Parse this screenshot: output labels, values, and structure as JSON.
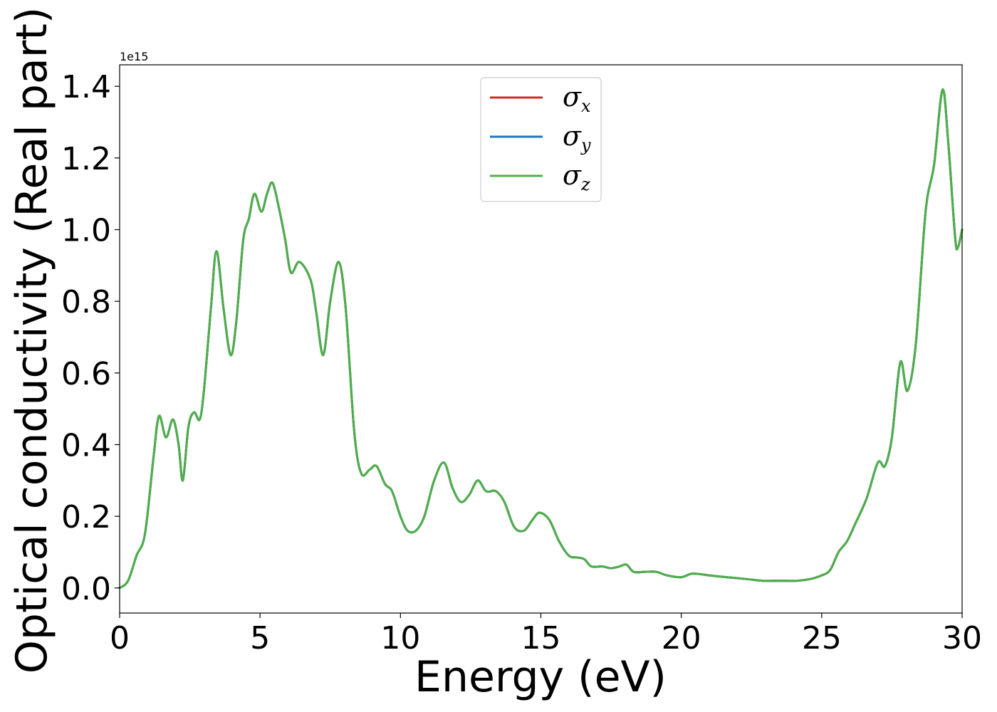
{
  "chart_data": {
    "type": "line",
    "xlabel": "Energy (eV)",
    "ylabel": "Optical conductivity (Real part)",
    "y_offset_label": "1e15",
    "xlim": [
      0,
      30
    ],
    "ylim": [
      -0.07,
      1.46
    ],
    "xticks": [
      0,
      5,
      10,
      15,
      20,
      25,
      30
    ],
    "xtick_labels": [
      "0",
      "5",
      "10",
      "15",
      "20",
      "25",
      "30"
    ],
    "yticks": [
      0.0,
      0.2,
      0.4,
      0.6,
      0.8,
      1.0,
      1.2,
      1.4
    ],
    "ytick_labels": [
      "0.0",
      "0.2",
      "0.4",
      "0.6",
      "0.8",
      "1.0",
      "1.2",
      "1.4"
    ],
    "grid": false,
    "legend_position": "top-center",
    "x": [
      0,
      0.3,
      0.6,
      0.9,
      1.2,
      1.4,
      1.65,
      1.9,
      2.1,
      2.25,
      2.45,
      2.65,
      2.85,
      3.0,
      3.25,
      3.45,
      3.7,
      3.95,
      4.15,
      4.4,
      4.6,
      4.8,
      5.05,
      5.25,
      5.45,
      5.7,
      5.9,
      6.1,
      6.4,
      6.8,
      7.0,
      7.25,
      7.5,
      7.8,
      8.05,
      8.35,
      8.6,
      8.9,
      9.15,
      9.45,
      9.7,
      10.0,
      10.25,
      10.55,
      10.85,
      11.2,
      11.55,
      11.85,
      12.15,
      12.45,
      12.75,
      13.05,
      13.4,
      13.7,
      14.05,
      14.4,
      14.7,
      14.95,
      15.3,
      15.65,
      16.0,
      16.3,
      16.55,
      16.8,
      17.2,
      17.5,
      17.8,
      18.05,
      18.3,
      18.7,
      19.1,
      19.5,
      20.0,
      20.4,
      21.0,
      21.6,
      22.3,
      22.9,
      23.5,
      24.1,
      24.6,
      25.0,
      25.3,
      25.6,
      25.9,
      26.2,
      26.6,
      27.0,
      27.25,
      27.5,
      27.8,
      28.05,
      28.35,
      28.7,
      29.0,
      29.3,
      29.5,
      29.75,
      29.85,
      30.0
    ],
    "series": [
      {
        "name": "σx",
        "color": "#d62728",
        "values": [
          0.0,
          0.02,
          0.09,
          0.15,
          0.36,
          0.48,
          0.42,
          0.47,
          0.4,
          0.3,
          0.45,
          0.49,
          0.47,
          0.55,
          0.78,
          0.94,
          0.78,
          0.65,
          0.74,
          0.97,
          1.03,
          1.1,
          1.05,
          1.1,
          1.13,
          1.05,
          0.97,
          0.88,
          0.91,
          0.86,
          0.77,
          0.65,
          0.8,
          0.91,
          0.78,
          0.44,
          0.32,
          0.33,
          0.34,
          0.29,
          0.27,
          0.2,
          0.16,
          0.16,
          0.2,
          0.3,
          0.35,
          0.28,
          0.24,
          0.26,
          0.3,
          0.27,
          0.27,
          0.24,
          0.17,
          0.16,
          0.19,
          0.21,
          0.19,
          0.13,
          0.09,
          0.085,
          0.08,
          0.06,
          0.06,
          0.055,
          0.06,
          0.065,
          0.045,
          0.045,
          0.045,
          0.035,
          0.03,
          0.04,
          0.035,
          0.03,
          0.025,
          0.02,
          0.02,
          0.02,
          0.025,
          0.035,
          0.05,
          0.1,
          0.13,
          0.18,
          0.25,
          0.35,
          0.34,
          0.42,
          0.63,
          0.55,
          0.68,
          1.05,
          1.18,
          1.39,
          1.25,
          0.98,
          0.95,
          1.0
        ]
      },
      {
        "name": "σy",
        "color": "#1f77b4",
        "values": [
          0.0,
          0.02,
          0.09,
          0.15,
          0.36,
          0.48,
          0.42,
          0.47,
          0.4,
          0.3,
          0.45,
          0.49,
          0.47,
          0.55,
          0.78,
          0.94,
          0.78,
          0.65,
          0.74,
          0.97,
          1.03,
          1.1,
          1.05,
          1.1,
          1.13,
          1.05,
          0.97,
          0.88,
          0.91,
          0.86,
          0.77,
          0.65,
          0.8,
          0.91,
          0.78,
          0.44,
          0.32,
          0.33,
          0.34,
          0.29,
          0.27,
          0.2,
          0.16,
          0.16,
          0.2,
          0.3,
          0.35,
          0.28,
          0.24,
          0.26,
          0.3,
          0.27,
          0.27,
          0.24,
          0.17,
          0.16,
          0.19,
          0.21,
          0.19,
          0.13,
          0.09,
          0.085,
          0.08,
          0.06,
          0.06,
          0.055,
          0.06,
          0.065,
          0.045,
          0.045,
          0.045,
          0.035,
          0.03,
          0.04,
          0.035,
          0.03,
          0.025,
          0.02,
          0.02,
          0.02,
          0.025,
          0.035,
          0.05,
          0.1,
          0.13,
          0.18,
          0.25,
          0.35,
          0.34,
          0.42,
          0.63,
          0.55,
          0.68,
          1.05,
          1.18,
          1.39,
          1.25,
          0.98,
          0.95,
          1.0
        ]
      },
      {
        "name": "σz",
        "color": "#4daf4a",
        "values": [
          0.0,
          0.02,
          0.09,
          0.15,
          0.36,
          0.48,
          0.42,
          0.47,
          0.4,
          0.3,
          0.45,
          0.49,
          0.47,
          0.55,
          0.78,
          0.94,
          0.78,
          0.65,
          0.74,
          0.97,
          1.03,
          1.1,
          1.05,
          1.1,
          1.13,
          1.05,
          0.97,
          0.88,
          0.91,
          0.86,
          0.77,
          0.65,
          0.8,
          0.91,
          0.78,
          0.44,
          0.32,
          0.33,
          0.34,
          0.29,
          0.27,
          0.2,
          0.16,
          0.16,
          0.2,
          0.3,
          0.35,
          0.28,
          0.24,
          0.26,
          0.3,
          0.27,
          0.27,
          0.24,
          0.17,
          0.16,
          0.19,
          0.21,
          0.19,
          0.13,
          0.09,
          0.085,
          0.08,
          0.06,
          0.06,
          0.055,
          0.06,
          0.065,
          0.045,
          0.045,
          0.045,
          0.035,
          0.03,
          0.04,
          0.035,
          0.03,
          0.025,
          0.02,
          0.02,
          0.02,
          0.025,
          0.035,
          0.05,
          0.1,
          0.13,
          0.18,
          0.25,
          0.35,
          0.34,
          0.42,
          0.63,
          0.55,
          0.68,
          1.05,
          1.18,
          1.39,
          1.25,
          0.98,
          0.95,
          1.0
        ]
      }
    ]
  }
}
